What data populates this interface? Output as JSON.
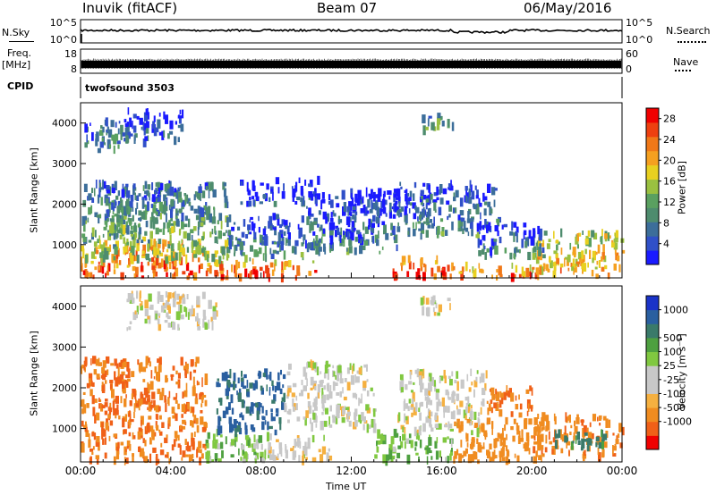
{
  "header": {
    "station": "Inuvik (fitACF)",
    "beam": "Beam 07",
    "date": "06/May/2016"
  },
  "labels": {
    "nsky": "N.Sky",
    "nsearch": "N.Search",
    "freq": "Freq.",
    "freq_unit": "[MHz]",
    "nave": "Nave",
    "cpid": "CPID",
    "cpid_value": "twofsound 3503",
    "slant_range": "Slant Range [km]",
    "time_axis": "Time UT",
    "power_label": "Power [dB]",
    "velocity_label": "Velocity [m s⁻¹]"
  },
  "colors": {
    "power_scale": [
      "#1a1aff",
      "#3050c8",
      "#3c6e9a",
      "#4e8c6e",
      "#5aa060",
      "#9ac040",
      "#e8d020",
      "#f5a020",
      "#f07818",
      "#ee4010",
      "#f00000"
    ],
    "velocity_scale": [
      "#1a33c8",
      "#2a5fa0",
      "#3a7a6a",
      "#4ea040",
      "#80c840",
      "#c8c8c8",
      "#c8c8c8",
      "#f5b040",
      "#f08c20",
      "#f06018",
      "#f00000"
    ]
  },
  "chart_data": [
    {
      "type": "line",
      "title": "N.Sky / N.Search",
      "ylim_left": [
        1,
        100000
      ],
      "yticks_left": [
        "10^5",
        "10^0"
      ],
      "ylim_right": [
        1,
        100000
      ],
      "yticks_right": [
        "10^5",
        "10^0"
      ],
      "series": [
        {
          "name": "N.Sky",
          "description": "nearly flat near upper range"
        }
      ]
    },
    {
      "type": "line",
      "title": "Freq. / Nave",
      "ylim_left": [
        8,
        18
      ],
      "yticks_left": [
        "18",
        "8"
      ],
      "ylim_right": [
        0,
        60
      ],
      "yticks_right": [
        "60",
        "0"
      ]
    },
    {
      "type": "heatmap",
      "quantity": "Power",
      "unit": "dB",
      "x_range_hours": [
        0,
        24
      ],
      "xticks": [
        "00:00",
        "04:00",
        "08:00",
        "12:00",
        "16:00",
        "20:00",
        "00:00"
      ],
      "ylim": [
        180,
        4500
      ],
      "yticks": [
        1000,
        2000,
        3000,
        4000
      ],
      "ylabel": "Slant Range [km]",
      "color_ticks": [
        4,
        8,
        12,
        16,
        20,
        24,
        28
      ],
      "color_range": [
        0,
        30
      ],
      "blobs": [
        {
          "t0": 0.0,
          "t1": 5.5,
          "r0": 180,
          "r1": 1100,
          "v": 26
        },
        {
          "t0": 5.5,
          "t1": 10.5,
          "r0": 180,
          "r1": 600,
          "v": 27
        },
        {
          "t0": 13.8,
          "t1": 16.5,
          "r0": 180,
          "r1": 650,
          "v": 27
        },
        {
          "t0": 16.5,
          "t1": 20.5,
          "r0": 180,
          "r1": 500,
          "v": 25
        },
        {
          "t0": 20.0,
          "t1": 24.0,
          "r0": 200,
          "r1": 1300,
          "v": 22
        },
        {
          "t0": 0.0,
          "t1": 6.5,
          "r0": 600,
          "r1": 2500,
          "v": 14
        },
        {
          "t0": 1.0,
          "t1": 4.5,
          "r0": 1300,
          "r1": 2500,
          "v": 12
        },
        {
          "t0": 6.5,
          "t1": 10.0,
          "r0": 600,
          "r1": 1700,
          "v": 10
        },
        {
          "t0": 7.0,
          "t1": 10.5,
          "r0": 2000,
          "r1": 2600,
          "v": 6
        },
        {
          "t0": 10.0,
          "t1": 14.0,
          "r0": 800,
          "r1": 2300,
          "v": 9
        },
        {
          "t0": 12.0,
          "t1": 15.5,
          "r0": 1700,
          "r1": 2300,
          "v": 5
        },
        {
          "t0": 14.0,
          "t1": 18.5,
          "r0": 1200,
          "r1": 2500,
          "v": 10
        },
        {
          "t0": 17.5,
          "t1": 20.5,
          "r0": 700,
          "r1": 1500,
          "v": 9
        },
        {
          "t0": 2.0,
          "t1": 4.5,
          "r0": 3500,
          "r1": 4300,
          "v": 7
        },
        {
          "t0": 15.0,
          "t1": 16.5,
          "r0": 3800,
          "r1": 4200,
          "v": 15
        },
        {
          "t0": 0.0,
          "t1": 2.0,
          "r0": 3300,
          "r1": 4100,
          "v": 11
        },
        {
          "t0": 11.0,
          "t1": 13.0,
          "r0": 1100,
          "r1": 1500,
          "v": 5
        }
      ]
    },
    {
      "type": "heatmap",
      "quantity": "Velocity",
      "unit": "m s^-1",
      "x_range_hours": [
        0,
        24
      ],
      "xticks": [
        "00:00",
        "04:00",
        "08:00",
        "12:00",
        "16:00",
        "20:00",
        "00:00"
      ],
      "ylim": [
        180,
        4500
      ],
      "yticks": [
        1000,
        2000,
        3000,
        4000
      ],
      "ylabel": "Slant Range [km]",
      "color_ticks": [
        1000,
        500,
        100,
        25,
        -25,
        -100,
        -500,
        -1000
      ],
      "blobs": [
        {
          "t0": 0.0,
          "t1": 5.5,
          "r0": 180,
          "r1": 2700,
          "v": -300
        },
        {
          "t0": 5.5,
          "t1": 8.0,
          "r0": 200,
          "r1": 900,
          "v": 50
        },
        {
          "t0": 7.5,
          "t1": 11.0,
          "r0": 200,
          "r1": 800,
          "v": 0
        },
        {
          "t0": 6.0,
          "t1": 9.0,
          "r0": 900,
          "r1": 2400,
          "v": 300
        },
        {
          "t0": 9.0,
          "t1": 13.0,
          "r0": 1000,
          "r1": 2600,
          "v": 0
        },
        {
          "t0": 13.0,
          "t1": 16.5,
          "r0": 200,
          "r1": 900,
          "v": 60
        },
        {
          "t0": 14.0,
          "t1": 18.0,
          "r0": 900,
          "r1": 2400,
          "v": 0
        },
        {
          "t0": 16.5,
          "t1": 20.5,
          "r0": 180,
          "r1": 1200,
          "v": -200
        },
        {
          "t0": 18.0,
          "t1": 20.0,
          "r0": 1300,
          "r1": 2000,
          "v": -300
        },
        {
          "t0": 20.0,
          "t1": 24.0,
          "r0": 300,
          "r1": 1300,
          "v": -250
        },
        {
          "t0": 21.0,
          "t1": 23.5,
          "r0": 500,
          "r1": 900,
          "v": 150
        },
        {
          "t0": 2.0,
          "t1": 6.0,
          "r0": 3400,
          "r1": 4300,
          "v": 0
        },
        {
          "t0": 15.0,
          "t1": 16.5,
          "r0": 3800,
          "r1": 4200,
          "v": 0
        }
      ]
    }
  ]
}
